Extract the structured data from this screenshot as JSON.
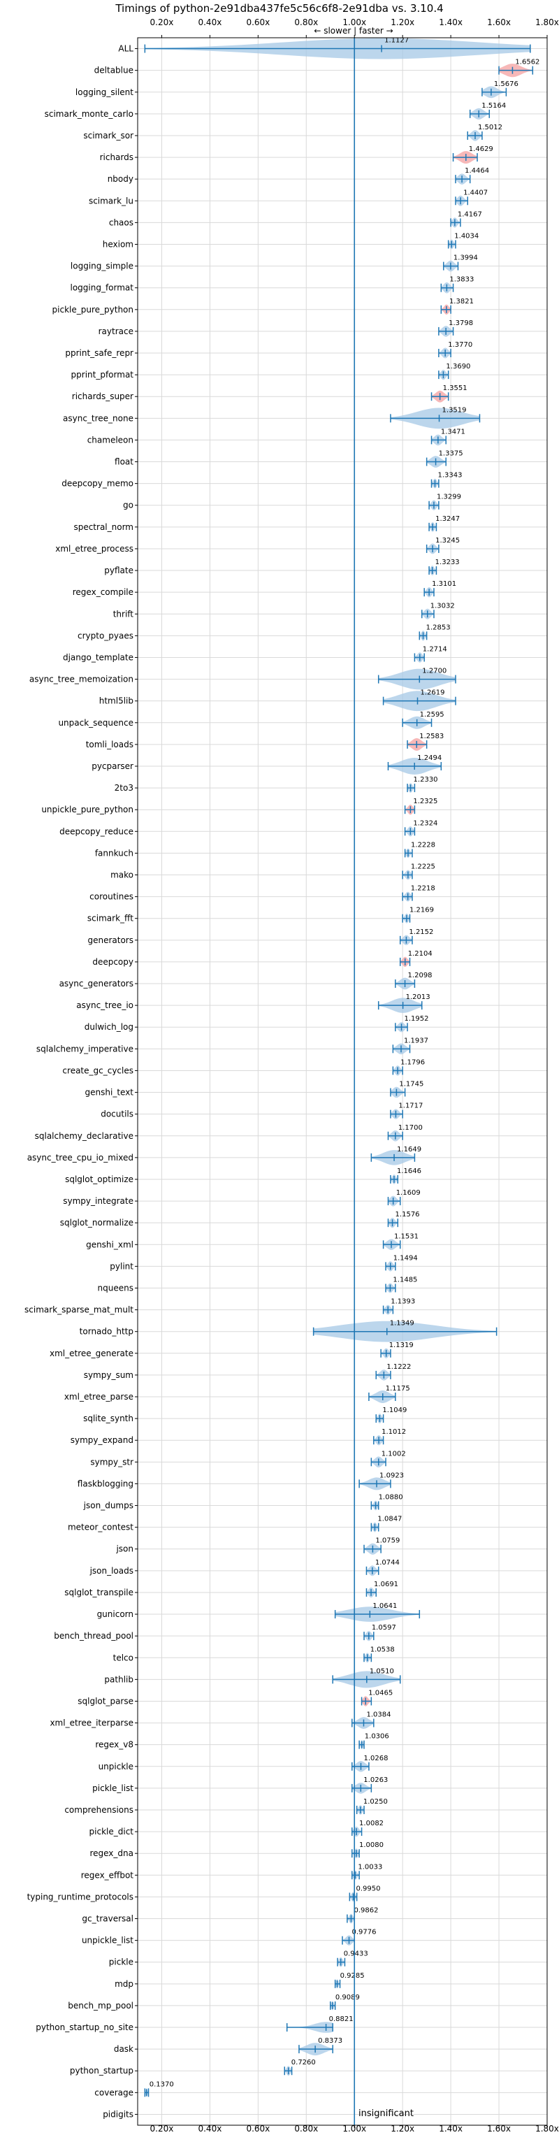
{
  "chart_data": {
    "type": "violin",
    "title": "Timings of python-2e91dba437fe5c56c6f8-2e91dba vs. 3.10.4",
    "direction_label": "← slower | faster →",
    "annotation": "insignificant",
    "xlim": [
      0.1,
      1.8
    ],
    "xticks": [
      0.2,
      0.4,
      0.6,
      0.8,
      1.0,
      1.2,
      1.4,
      1.6,
      1.8
    ],
    "xtick_labels": [
      "0.20x",
      "0.40x",
      "0.60x",
      "0.80x",
      "1.00x",
      "1.20x",
      "1.40x",
      "1.60x",
      "1.80x"
    ],
    "reference_line": 1.0,
    "grid": true,
    "benchmarks": [
      {
        "name": "ALL",
        "mean": 1.1127,
        "label": "1.1127",
        "lo": 0.13,
        "hi": 1.73,
        "spread": 0.45,
        "highlight": false
      },
      {
        "name": "deltablue",
        "mean": 1.6562,
        "label": "1.6562",
        "lo": 1.6,
        "hi": 1.74,
        "spread": 0.06,
        "highlight": true
      },
      {
        "name": "logging_silent",
        "mean": 1.5676,
        "label": "1.5676",
        "lo": 1.53,
        "hi": 1.63,
        "spread": 0.04,
        "highlight": false
      },
      {
        "name": "scimark_monte_carlo",
        "mean": 1.5164,
        "label": "1.5164",
        "lo": 1.48,
        "hi": 1.56,
        "spread": 0.035,
        "highlight": false
      },
      {
        "name": "scimark_sor",
        "mean": 1.5012,
        "label": "1.5012",
        "lo": 1.47,
        "hi": 1.53,
        "spread": 0.03,
        "highlight": false
      },
      {
        "name": "richards",
        "mean": 1.4629,
        "label": "1.4629",
        "lo": 1.41,
        "hi": 1.51,
        "spread": 0.05,
        "highlight": true
      },
      {
        "name": "nbody",
        "mean": 1.4464,
        "label": "1.4464",
        "lo": 1.42,
        "hi": 1.48,
        "spread": 0.03,
        "highlight": false
      },
      {
        "name": "scimark_lu",
        "mean": 1.4407,
        "label": "1.4407",
        "lo": 1.42,
        "hi": 1.47,
        "spread": 0.025,
        "highlight": false
      },
      {
        "name": "chaos",
        "mean": 1.4167,
        "label": "1.4167",
        "lo": 1.4,
        "hi": 1.44,
        "spread": 0.02,
        "highlight": false
      },
      {
        "name": "hexiom",
        "mean": 1.4034,
        "label": "1.4034",
        "lo": 1.39,
        "hi": 1.42,
        "spread": 0.015,
        "highlight": false
      },
      {
        "name": "logging_simple",
        "mean": 1.3994,
        "label": "1.3994",
        "lo": 1.37,
        "hi": 1.43,
        "spread": 0.03,
        "highlight": false
      },
      {
        "name": "logging_format",
        "mean": 1.3833,
        "label": "1.3833",
        "lo": 1.36,
        "hi": 1.41,
        "spread": 0.03,
        "highlight": false
      },
      {
        "name": "pickle_pure_python",
        "mean": 1.3821,
        "label": "1.3821",
        "lo": 1.36,
        "hi": 1.4,
        "spread": 0.02,
        "highlight": true
      },
      {
        "name": "raytrace",
        "mean": 1.3798,
        "label": "1.3798",
        "lo": 1.35,
        "hi": 1.41,
        "spread": 0.03,
        "highlight": false
      },
      {
        "name": "pprint_safe_repr",
        "mean": 1.377,
        "label": "1.3770",
        "lo": 1.35,
        "hi": 1.4,
        "spread": 0.025,
        "highlight": false
      },
      {
        "name": "pprint_pformat",
        "mean": 1.369,
        "label": "1.3690",
        "lo": 1.35,
        "hi": 1.39,
        "spread": 0.02,
        "highlight": false
      },
      {
        "name": "richards_super",
        "mean": 1.3551,
        "label": "1.3551",
        "lo": 1.32,
        "hi": 1.39,
        "spread": 0.04,
        "highlight": true
      },
      {
        "name": "async_tree_none",
        "mean": 1.3519,
        "label": "1.3519",
        "lo": 1.15,
        "hi": 1.52,
        "spread": 0.18,
        "highlight": false
      },
      {
        "name": "chameleon",
        "mean": 1.3471,
        "label": "1.3471",
        "lo": 1.32,
        "hi": 1.38,
        "spread": 0.03,
        "highlight": false
      },
      {
        "name": "float",
        "mean": 1.3375,
        "label": "1.3375",
        "lo": 1.3,
        "hi": 1.38,
        "spread": 0.04,
        "highlight": false
      },
      {
        "name": "deepcopy_memo",
        "mean": 1.3343,
        "label": "1.3343",
        "lo": 1.32,
        "hi": 1.35,
        "spread": 0.015,
        "highlight": false
      },
      {
        "name": "go",
        "mean": 1.3299,
        "label": "1.3299",
        "lo": 1.31,
        "hi": 1.35,
        "spread": 0.02,
        "highlight": false
      },
      {
        "name": "spectral_norm",
        "mean": 1.3247,
        "label": "1.3247",
        "lo": 1.31,
        "hi": 1.34,
        "spread": 0.015,
        "highlight": false
      },
      {
        "name": "xml_etree_process",
        "mean": 1.3245,
        "label": "1.3245",
        "lo": 1.3,
        "hi": 1.35,
        "spread": 0.025,
        "highlight": false
      },
      {
        "name": "pyflate",
        "mean": 1.3233,
        "label": "1.3233",
        "lo": 1.31,
        "hi": 1.34,
        "spread": 0.015,
        "highlight": false
      },
      {
        "name": "regex_compile",
        "mean": 1.3101,
        "label": "1.3101",
        "lo": 1.29,
        "hi": 1.33,
        "spread": 0.02,
        "highlight": false
      },
      {
        "name": "thrift",
        "mean": 1.3032,
        "label": "1.3032",
        "lo": 1.28,
        "hi": 1.33,
        "spread": 0.025,
        "highlight": false
      },
      {
        "name": "crypto_pyaes",
        "mean": 1.2853,
        "label": "1.2853",
        "lo": 1.27,
        "hi": 1.3,
        "spread": 0.02,
        "highlight": false
      },
      {
        "name": "django_template",
        "mean": 1.2714,
        "label": "1.2714",
        "lo": 1.25,
        "hi": 1.29,
        "spread": 0.02,
        "highlight": false
      },
      {
        "name": "async_tree_memoization",
        "mean": 1.27,
        "label": "1.2700",
        "lo": 1.1,
        "hi": 1.42,
        "spread": 0.15,
        "highlight": false
      },
      {
        "name": "html5lib",
        "mean": 1.2619,
        "label": "1.2619",
        "lo": 1.12,
        "hi": 1.42,
        "spread": 0.14,
        "highlight": false
      },
      {
        "name": "unpack_sequence",
        "mean": 1.2595,
        "label": "1.2595",
        "lo": 1.2,
        "hi": 1.32,
        "spread": 0.05,
        "highlight": false
      },
      {
        "name": "tomli_loads",
        "mean": 1.2583,
        "label": "1.2583",
        "lo": 1.22,
        "hi": 1.3,
        "spread": 0.05,
        "highlight": true
      },
      {
        "name": "pycparser",
        "mean": 1.2494,
        "label": "1.2494",
        "lo": 1.14,
        "hi": 1.36,
        "spread": 0.1,
        "highlight": false
      },
      {
        "name": "2to3",
        "mean": 1.233,
        "label": "1.2330",
        "lo": 1.22,
        "hi": 1.25,
        "spread": 0.015,
        "highlight": false
      },
      {
        "name": "unpickle_pure_python",
        "mean": 1.2325,
        "label": "1.2325",
        "lo": 1.21,
        "hi": 1.25,
        "spread": 0.02,
        "highlight": true
      },
      {
        "name": "deepcopy_reduce",
        "mean": 1.2324,
        "label": "1.2324",
        "lo": 1.21,
        "hi": 1.25,
        "spread": 0.02,
        "highlight": false
      },
      {
        "name": "fannkuch",
        "mean": 1.2228,
        "label": "1.2228",
        "lo": 1.21,
        "hi": 1.24,
        "spread": 0.01,
        "highlight": false
      },
      {
        "name": "mako",
        "mean": 1.2225,
        "label": "1.2225",
        "lo": 1.2,
        "hi": 1.24,
        "spread": 0.015,
        "highlight": false
      },
      {
        "name": "coroutines",
        "mean": 1.2218,
        "label": "1.2218",
        "lo": 1.2,
        "hi": 1.24,
        "spread": 0.015,
        "highlight": false
      },
      {
        "name": "scimark_fft",
        "mean": 1.2169,
        "label": "1.2169",
        "lo": 1.2,
        "hi": 1.23,
        "spread": 0.015,
        "highlight": false
      },
      {
        "name": "generators",
        "mean": 1.2152,
        "label": "1.2152",
        "lo": 1.19,
        "hi": 1.24,
        "spread": 0.02,
        "highlight": false
      },
      {
        "name": "deepcopy",
        "mean": 1.2104,
        "label": "1.2104",
        "lo": 1.19,
        "hi": 1.23,
        "spread": 0.02,
        "highlight": true
      },
      {
        "name": "async_generators",
        "mean": 1.2098,
        "label": "1.2098",
        "lo": 1.17,
        "hi": 1.25,
        "spread": 0.04,
        "highlight": false
      },
      {
        "name": "async_tree_io",
        "mean": 1.2013,
        "label": "1.2013",
        "lo": 1.1,
        "hi": 1.28,
        "spread": 0.08,
        "highlight": false
      },
      {
        "name": "dulwich_log",
        "mean": 1.1952,
        "label": "1.1952",
        "lo": 1.17,
        "hi": 1.22,
        "spread": 0.02,
        "highlight": false
      },
      {
        "name": "sqlalchemy_imperative",
        "mean": 1.1937,
        "label": "1.1937",
        "lo": 1.16,
        "hi": 1.23,
        "spread": 0.03,
        "highlight": false
      },
      {
        "name": "create_gc_cycles",
        "mean": 1.1796,
        "label": "1.1796",
        "lo": 1.16,
        "hi": 1.2,
        "spread": 0.02,
        "highlight": false
      },
      {
        "name": "genshi_text",
        "mean": 1.1745,
        "label": "1.1745",
        "lo": 1.15,
        "hi": 1.21,
        "spread": 0.03,
        "highlight": false
      },
      {
        "name": "docutils",
        "mean": 1.1717,
        "label": "1.1717",
        "lo": 1.15,
        "hi": 1.2,
        "spread": 0.02,
        "highlight": false
      },
      {
        "name": "sqlalchemy_declarative",
        "mean": 1.17,
        "label": "1.1700",
        "lo": 1.14,
        "hi": 1.2,
        "spread": 0.03,
        "highlight": false
      },
      {
        "name": "async_tree_cpu_io_mixed",
        "mean": 1.1649,
        "label": "1.1649",
        "lo": 1.07,
        "hi": 1.25,
        "spread": 0.08,
        "highlight": false
      },
      {
        "name": "sqlglot_optimize",
        "mean": 1.1646,
        "label": "1.1646",
        "lo": 1.15,
        "hi": 1.18,
        "spread": 0.015,
        "highlight": false
      },
      {
        "name": "sympy_integrate",
        "mean": 1.1609,
        "label": "1.1609",
        "lo": 1.14,
        "hi": 1.19,
        "spread": 0.025,
        "highlight": false
      },
      {
        "name": "sqlglot_normalize",
        "mean": 1.1576,
        "label": "1.1576",
        "lo": 1.14,
        "hi": 1.18,
        "spread": 0.02,
        "highlight": false
      },
      {
        "name": "genshi_xml",
        "mean": 1.1531,
        "label": "1.1531",
        "lo": 1.12,
        "hi": 1.19,
        "spread": 0.03,
        "highlight": false
      },
      {
        "name": "pylint",
        "mean": 1.1494,
        "label": "1.1494",
        "lo": 1.13,
        "hi": 1.17,
        "spread": 0.02,
        "highlight": false
      },
      {
        "name": "nqueens",
        "mean": 1.1485,
        "label": "1.1485",
        "lo": 1.13,
        "hi": 1.17,
        "spread": 0.015,
        "highlight": false
      },
      {
        "name": "scimark_sparse_mat_mult",
        "mean": 1.1393,
        "label": "1.1393",
        "lo": 1.12,
        "hi": 1.16,
        "spread": 0.015,
        "highlight": false
      },
      {
        "name": "tornado_http",
        "mean": 1.1349,
        "label": "1.1349",
        "lo": 0.83,
        "hi": 1.59,
        "spread": 0.3,
        "highlight": false
      },
      {
        "name": "xml_etree_generate",
        "mean": 1.1319,
        "label": "1.1319",
        "lo": 1.11,
        "hi": 1.15,
        "spread": 0.02,
        "highlight": false
      },
      {
        "name": "sympy_sum",
        "mean": 1.1222,
        "label": "1.1222",
        "lo": 1.09,
        "hi": 1.15,
        "spread": 0.03,
        "highlight": false
      },
      {
        "name": "xml_etree_parse",
        "mean": 1.1175,
        "label": "1.1175",
        "lo": 1.06,
        "hi": 1.17,
        "spread": 0.05,
        "highlight": false
      },
      {
        "name": "sqlite_synth",
        "mean": 1.1049,
        "label": "1.1049",
        "lo": 1.09,
        "hi": 1.12,
        "spread": 0.015,
        "highlight": false
      },
      {
        "name": "sympy_expand",
        "mean": 1.1012,
        "label": "1.1012",
        "lo": 1.08,
        "hi": 1.12,
        "spread": 0.02,
        "highlight": false
      },
      {
        "name": "sympy_str",
        "mean": 1.1002,
        "label": "1.1002",
        "lo": 1.07,
        "hi": 1.13,
        "spread": 0.03,
        "highlight": false
      },
      {
        "name": "flaskblogging",
        "mean": 1.0923,
        "label": "1.0923",
        "lo": 1.02,
        "hi": 1.15,
        "spread": 0.05,
        "highlight": false
      },
      {
        "name": "json_dumps",
        "mean": 1.088,
        "label": "1.0880",
        "lo": 1.07,
        "hi": 1.1,
        "spread": 0.015,
        "highlight": false
      },
      {
        "name": "meteor_contest",
        "mean": 1.0847,
        "label": "1.0847",
        "lo": 1.07,
        "hi": 1.1,
        "spread": 0.015,
        "highlight": false
      },
      {
        "name": "json",
        "mean": 1.0759,
        "label": "1.0759",
        "lo": 1.04,
        "hi": 1.11,
        "spread": 0.035,
        "highlight": false
      },
      {
        "name": "json_loads",
        "mean": 1.0744,
        "label": "1.0744",
        "lo": 1.05,
        "hi": 1.1,
        "spread": 0.025,
        "highlight": false
      },
      {
        "name": "sqlglot_transpile",
        "mean": 1.0691,
        "label": "1.0691",
        "lo": 1.05,
        "hi": 1.09,
        "spread": 0.02,
        "highlight": false
      },
      {
        "name": "gunicorn",
        "mean": 1.0641,
        "label": "1.0641",
        "lo": 0.92,
        "hi": 1.27,
        "spread": 0.08,
        "highlight": false
      },
      {
        "name": "bench_thread_pool",
        "mean": 1.0597,
        "label": "1.0597",
        "lo": 1.04,
        "hi": 1.08,
        "spread": 0.02,
        "highlight": false
      },
      {
        "name": "telco",
        "mean": 1.0538,
        "label": "1.0538",
        "lo": 1.04,
        "hi": 1.07,
        "spread": 0.015,
        "highlight": false
      },
      {
        "name": "pathlib",
        "mean": 1.051,
        "label": "1.0510",
        "lo": 0.91,
        "hi": 1.19,
        "spread": 0.1,
        "highlight": false
      },
      {
        "name": "sqlglot_parse",
        "mean": 1.0465,
        "label": "1.0465",
        "lo": 1.03,
        "hi": 1.07,
        "spread": 0.02,
        "highlight": true
      },
      {
        "name": "xml_etree_iterparse",
        "mean": 1.0384,
        "label": "1.0384",
        "lo": 0.99,
        "hi": 1.08,
        "spread": 0.04,
        "highlight": false
      },
      {
        "name": "regex_v8",
        "mean": 1.0306,
        "label": "1.0306",
        "lo": 1.02,
        "hi": 1.04,
        "spread": 0.01,
        "highlight": false
      },
      {
        "name": "unpickle",
        "mean": 1.0268,
        "label": "1.0268",
        "lo": 0.99,
        "hi": 1.06,
        "spread": 0.03,
        "highlight": false
      },
      {
        "name": "pickle_list",
        "mean": 1.0263,
        "label": "1.0263",
        "lo": 0.99,
        "hi": 1.07,
        "spread": 0.03,
        "highlight": false
      },
      {
        "name": "comprehensions",
        "mean": 1.025,
        "label": "1.0250",
        "lo": 1.01,
        "hi": 1.04,
        "spread": 0.015,
        "highlight": false
      },
      {
        "name": "pickle_dict",
        "mean": 1.0082,
        "label": "1.0082",
        "lo": 0.99,
        "hi": 1.03,
        "spread": 0.02,
        "highlight": false
      },
      {
        "name": "regex_dna",
        "mean": 1.008,
        "label": "1.0080",
        "lo": 0.99,
        "hi": 1.02,
        "spread": 0.015,
        "highlight": false
      },
      {
        "name": "regex_effbot",
        "mean": 1.0033,
        "label": "1.0033",
        "lo": 0.99,
        "hi": 1.02,
        "spread": 0.01,
        "highlight": false
      },
      {
        "name": "typing_runtime_protocols",
        "mean": 0.995,
        "label": "0.9950",
        "lo": 0.98,
        "hi": 1.01,
        "spread": 0.015,
        "highlight": false
      },
      {
        "name": "gc_traversal",
        "mean": 0.9862,
        "label": "0.9862",
        "lo": 0.97,
        "hi": 1.0,
        "spread": 0.015,
        "highlight": false
      },
      {
        "name": "unpickle_list",
        "mean": 0.9776,
        "label": "0.9776",
        "lo": 0.95,
        "hi": 1.0,
        "spread": 0.02,
        "highlight": false
      },
      {
        "name": "pickle",
        "mean": 0.9433,
        "label": "0.9433",
        "lo": 0.93,
        "hi": 0.96,
        "spread": 0.015,
        "highlight": false
      },
      {
        "name": "mdp",
        "mean": 0.9285,
        "label": "0.9285",
        "lo": 0.92,
        "hi": 0.94,
        "spread": 0.01,
        "highlight": false
      },
      {
        "name": "bench_mp_pool",
        "mean": 0.9089,
        "label": "0.9089",
        "lo": 0.9,
        "hi": 0.92,
        "spread": 0.01,
        "highlight": false
      },
      {
        "name": "python_startup_no_site",
        "mean": 0.8821,
        "label": "0.8821",
        "lo": 0.72,
        "hi": 0.91,
        "spread": 0.03,
        "highlight": false
      },
      {
        "name": "dask",
        "mean": 0.8373,
        "label": "0.8373",
        "lo": 0.77,
        "hi": 0.91,
        "spread": 0.05,
        "highlight": false
      },
      {
        "name": "python_startup",
        "mean": 0.726,
        "label": "0.7260",
        "lo": 0.71,
        "hi": 0.74,
        "spread": 0.015,
        "highlight": false
      },
      {
        "name": "coverage",
        "mean": 0.137,
        "label": "0.1370",
        "lo": 0.13,
        "hi": 0.145,
        "spread": 0.005,
        "highlight": false
      },
      {
        "name": "pidigits",
        "mean": null,
        "label": "",
        "lo": null,
        "hi": null,
        "spread": 0,
        "highlight": false
      }
    ],
    "colors": {
      "violin": "#a6c8e6",
      "line": "#1f77b4",
      "highlight": "#f4a0a0",
      "grid": "#d9d9d9",
      "text": "#000000"
    }
  }
}
